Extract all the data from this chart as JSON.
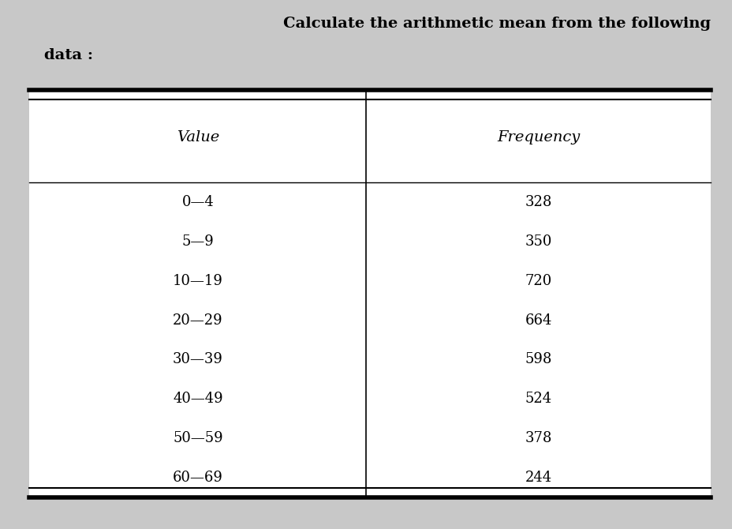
{
  "title_line1": "Calculate the arithmetic mean from the following",
  "title_line2": "data :",
  "col1_header": "Value",
  "col2_header": "Frequency",
  "rows": [
    [
      "0—4",
      "328"
    ],
    [
      "5—9",
      "350"
    ],
    [
      "10—19",
      "720"
    ],
    [
      "20—29",
      "664"
    ],
    [
      "30—39",
      "598"
    ],
    [
      "40—49",
      "524"
    ],
    [
      "50—59",
      "378"
    ],
    [
      "60—69",
      "244"
    ]
  ],
  "bg_color": "#c8c8c8",
  "table_bg": "#ffffff",
  "title_fontsize": 14,
  "header_fontsize": 13,
  "data_fontsize": 13,
  "fig_width": 9.29,
  "fig_height": 6.7
}
